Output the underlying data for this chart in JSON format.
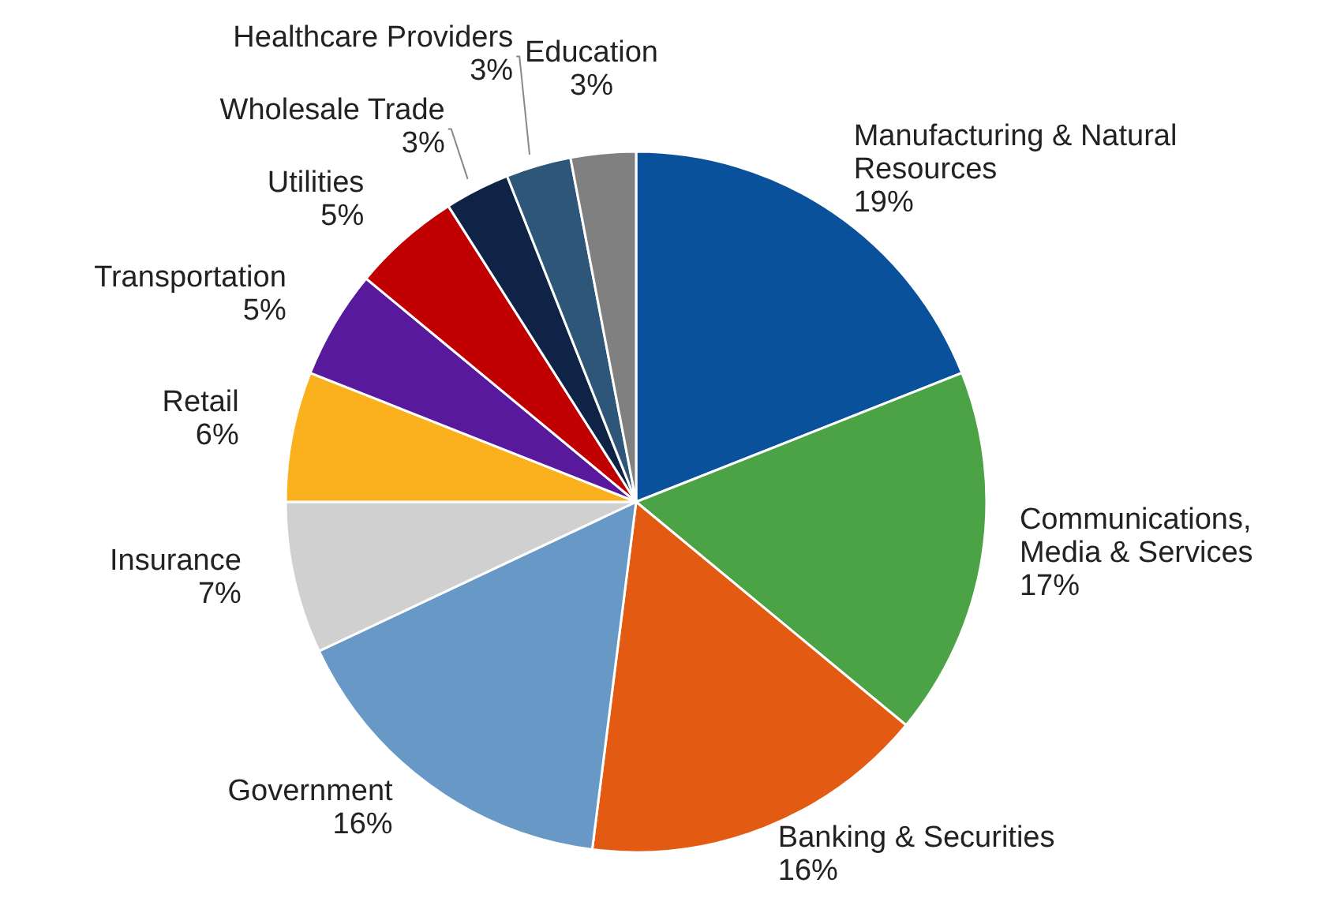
{
  "chart_data": {
    "type": "pie",
    "categories": [
      "Manufacturing & Natural Resources",
      "Communications, Media & Services",
      "Banking & Securities",
      "Government",
      "Insurance",
      "Retail",
      "Transportation",
      "Utilities",
      "Wholesale Trade",
      "Healthcare Providers",
      "Education"
    ],
    "values": [
      19,
      17,
      16,
      16,
      7,
      6,
      5,
      5,
      3,
      3,
      3
    ],
    "value_labels": [
      "19%",
      "17%",
      "16%",
      "16%",
      "7%",
      "6%",
      "5%",
      "5%",
      "3%",
      "3%",
      "3%"
    ],
    "colors": [
      "#0a519c",
      "#4ca346",
      "#e35a12",
      "#6899c6",
      "#d0d0d0",
      "#fbb01e",
      "#58199c",
      "#c00000",
      "#0f2347",
      "#2e5679",
      "#808080"
    ],
    "legend": false
  }
}
